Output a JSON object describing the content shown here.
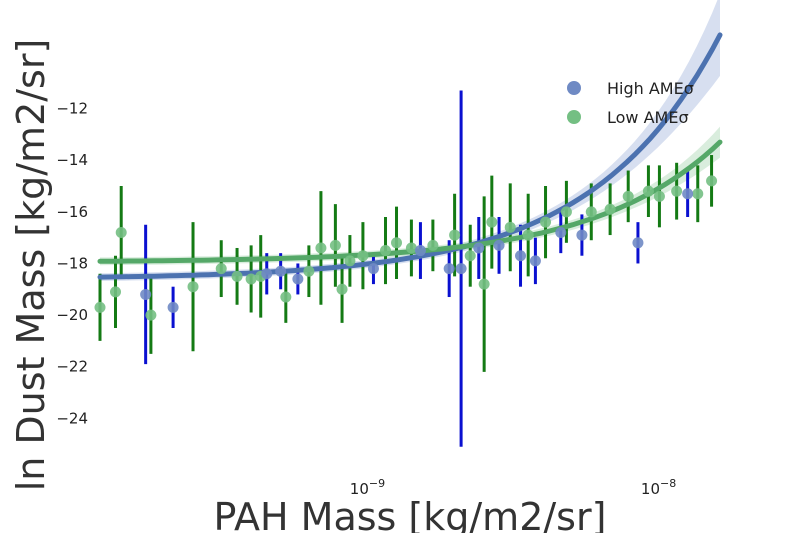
{
  "chart_data": {
    "type": "scatter",
    "xlabel": "PAH Mass [kg/m2/sr]",
    "ylabel": "ln Dust Mass [kg/m2/sr]",
    "x_scale": "log",
    "xlim": [
      1.15e-10,
      1.55e-08
    ],
    "ylim": [
      -26,
      -10.7
    ],
    "x_ticks": [
      {
        "value": 1e-09,
        "base": "10",
        "exp": "−9"
      },
      {
        "value": 1e-08,
        "base": "10",
        "exp": "−8"
      }
    ],
    "y_ticks": [
      {
        "value": -12,
        "label": "−12"
      },
      {
        "value": -14,
        "label": "−14"
      },
      {
        "value": -16,
        "label": "−16"
      },
      {
        "value": -18,
        "label": "−18"
      },
      {
        "value": -20,
        "label": "−20"
      },
      {
        "value": -22,
        "label": "−22"
      },
      {
        "value": -24,
        "label": "−24"
      }
    ],
    "grid": false,
    "legend_position": "top-right",
    "series": [
      {
        "name": "High AMEσ",
        "marker_color": "#6f8ac4",
        "errorbar_color": "#0a10d0",
        "fit_color": "#4c72b0",
        "band_color": "#c6d2ea",
        "fit": {
          "intercept": -18.6,
          "slope": 610000000.0
        },
        "points": [
          {
            "x": 1.65e-10,
            "y": -19.2,
            "err": 2.7
          },
          {
            "x": 2.05e-10,
            "y": -19.7,
            "err": 0.8
          },
          {
            "x": 4.3e-10,
            "y": -18.4,
            "err": 0.8
          },
          {
            "x": 4.8e-10,
            "y": -18.3,
            "err": 0.7
          },
          {
            "x": 5.5e-10,
            "y": -18.6,
            "err": 0.6
          },
          {
            "x": 1e-09,
            "y": -18.2,
            "err": 0.6
          },
          {
            "x": 1.45e-09,
            "y": -17.5,
            "err": 1.1
          },
          {
            "x": 1.82e-09,
            "y": -18.2,
            "err": 1.1
          },
          {
            "x": 2e-09,
            "y": -18.2,
            "err": 6.9
          },
          {
            "x": 2.3e-09,
            "y": -17.4,
            "err": 1.2
          },
          {
            "x": 2.7e-09,
            "y": -17.3,
            "err": 1.1
          },
          {
            "x": 3.2e-09,
            "y": -17.7,
            "err": 1.2
          },
          {
            "x": 3.6e-09,
            "y": -17.9,
            "err": 0.9
          },
          {
            "x": 4.4e-09,
            "y": -16.8,
            "err": 0.8
          },
          {
            "x": 5.2e-09,
            "y": -16.9,
            "err": 0.8
          },
          {
            "x": 8.1e-09,
            "y": -17.2,
            "err": 0.8
          },
          {
            "x": 1.2e-08,
            "y": -15.3,
            "err": 0.9
          }
        ]
      },
      {
        "name": "Low AMEσ",
        "marker_color": "#74bf83",
        "errorbar_color": "#147a14",
        "fit_color": "#55a868",
        "band_color": "#c9e6cf",
        "fit": {
          "intercept": -17.95,
          "slope": 300000000.0
        },
        "points": [
          {
            "x": 1.15e-10,
            "y": -19.7,
            "err": 1.3
          },
          {
            "x": 1.3e-10,
            "y": -19.1,
            "err": 1.4
          },
          {
            "x": 1.36e-10,
            "y": -16.8,
            "err": 1.8
          },
          {
            "x": 1.72e-10,
            "y": -20.0,
            "err": 1.5
          },
          {
            "x": 2.4e-10,
            "y": -18.9,
            "err": 2.5
          },
          {
            "x": 3e-10,
            "y": -18.2,
            "err": 1.1
          },
          {
            "x": 3.4e-10,
            "y": -18.5,
            "err": 1.1
          },
          {
            "x": 3.8e-10,
            "y": -18.6,
            "err": 1.3
          },
          {
            "x": 4.1e-10,
            "y": -18.5,
            "err": 1.6
          },
          {
            "x": 5e-10,
            "y": -19.3,
            "err": 1.0
          },
          {
            "x": 6e-10,
            "y": -18.3,
            "err": 1.0
          },
          {
            "x": 6.6e-10,
            "y": -17.4,
            "err": 2.2
          },
          {
            "x": 7.4e-10,
            "y": -17.3,
            "err": 1.6
          },
          {
            "x": 7.8e-10,
            "y": -19.0,
            "err": 1.3
          },
          {
            "x": 8.3e-10,
            "y": -17.9,
            "err": 1.0
          },
          {
            "x": 9.2e-10,
            "y": -17.7,
            "err": 1.3
          },
          {
            "x": 1.1e-09,
            "y": -17.5,
            "err": 1.3
          },
          {
            "x": 1.2e-09,
            "y": -17.2,
            "err": 1.4
          },
          {
            "x": 1.35e-09,
            "y": -17.4,
            "err": 1.1
          },
          {
            "x": 1.6e-09,
            "y": -17.3,
            "err": 1.0
          },
          {
            "x": 1.9e-09,
            "y": -16.9,
            "err": 1.6
          },
          {
            "x": 2.15e-09,
            "y": -17.7,
            "err": 1.2
          },
          {
            "x": 2.4e-09,
            "y": -18.8,
            "err": 3.4
          },
          {
            "x": 2.55e-09,
            "y": -16.4,
            "err": 1.8
          },
          {
            "x": 2.95e-09,
            "y": -16.6,
            "err": 1.7
          },
          {
            "x": 3.4e-09,
            "y": -16.9,
            "err": 1.6
          },
          {
            "x": 3.9e-09,
            "y": -16.4,
            "err": 1.4
          },
          {
            "x": 4.6e-09,
            "y": -16.0,
            "err": 1.2
          },
          {
            "x": 5.6e-09,
            "y": -16.0,
            "err": 1.1
          },
          {
            "x": 6.5e-09,
            "y": -15.9,
            "err": 1.0
          },
          {
            "x": 7.5e-09,
            "y": -15.4,
            "err": 1.0
          },
          {
            "x": 8.8e-09,
            "y": -15.2,
            "err": 1.0
          },
          {
            "x": 9.6e-09,
            "y": -15.4,
            "err": 1.2
          },
          {
            "x": 1.1e-08,
            "y": -15.2,
            "err": 1.1
          },
          {
            "x": 1.3e-08,
            "y": -15.3,
            "err": 1.1
          },
          {
            "x": 1.45e-08,
            "y": -14.8,
            "err": 1.0
          }
        ]
      }
    ]
  }
}
